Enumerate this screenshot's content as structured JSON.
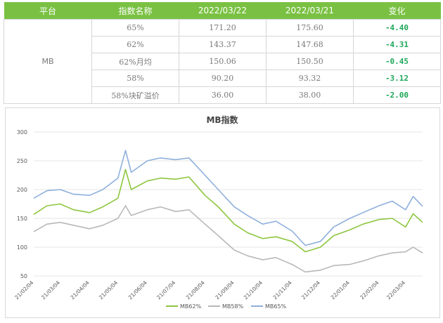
{
  "table": {
    "headers": [
      "平台",
      "指数名称",
      "2022/03/22",
      "2022/03/21",
      "变化"
    ],
    "platform": "MB",
    "rows": [
      {
        "name": "65%",
        "d1": "171.20",
        "d2": "175.60",
        "change": "-4.40"
      },
      {
        "name": "62%",
        "d1": "143.37",
        "d2": "147.68",
        "change": "-4.31"
      },
      {
        "name": "62%月均",
        "d1": "150.06",
        "d2": "150.50",
        "change": "-0.45"
      },
      {
        "name": "58%",
        "d1": "90.20",
        "d2": "93.32",
        "change": "-3.12"
      },
      {
        "name": "58%块矿溢价",
        "d1": "36.00",
        "d2": "38.00",
        "change": "-2.00"
      }
    ]
  },
  "chart_data": {
    "type": "line",
    "title": "MB指数",
    "ylim": [
      50,
      300
    ],
    "yticks": [
      50,
      100,
      150,
      200,
      250,
      300
    ],
    "x_tick_labels": [
      "21/02/04",
      "21/03/04",
      "21/04/04",
      "21/05/04",
      "21/06/04",
      "21/07/04",
      "21/08/04",
      "21/09/04",
      "21/10/04",
      "21/11/04",
      "21/12/04",
      "22/01/04",
      "22/02/04",
      "22/03/04"
    ],
    "legend_position": "bottom",
    "x": [
      "21/02/04",
      "21/02/18",
      "21/03/04",
      "21/03/18",
      "21/04/04",
      "21/04/18",
      "21/05/04",
      "21/05/12",
      "21/05/18",
      "21/06/04",
      "21/06/18",
      "21/07/04",
      "21/07/18",
      "21/08/04",
      "21/08/18",
      "21/09/04",
      "21/09/18",
      "21/10/04",
      "21/10/18",
      "21/11/04",
      "21/11/18",
      "21/12/04",
      "21/12/18",
      "22/01/04",
      "22/01/18",
      "22/02/04",
      "22/02/18",
      "22/03/04",
      "22/03/12",
      "22/03/22"
    ],
    "series": [
      {
        "name": "MB62%",
        "color": "#8dc63f",
        "values": [
          157,
          172,
          175,
          165,
          160,
          170,
          185,
          235,
          200,
          215,
          220,
          218,
          222,
          190,
          170,
          140,
          125,
          115,
          118,
          110,
          92,
          100,
          120,
          130,
          140,
          148,
          150,
          135,
          158,
          143
        ]
      },
      {
        "name": "MB58%",
        "color": "#b8b8b8",
        "values": [
          127,
          140,
          143,
          138,
          132,
          138,
          150,
          172,
          155,
          165,
          170,
          162,
          165,
          140,
          120,
          95,
          85,
          78,
          82,
          70,
          57,
          60,
          68,
          70,
          76,
          85,
          90,
          92,
          100,
          90
        ]
      },
      {
        "name": "MB65%",
        "color": "#8eafdc",
        "values": [
          185,
          198,
          200,
          192,
          190,
          200,
          220,
          268,
          230,
          250,
          255,
          252,
          255,
          225,
          200,
          170,
          155,
          140,
          145,
          128,
          103,
          110,
          135,
          150,
          160,
          172,
          180,
          165,
          188,
          171
        ]
      }
    ]
  }
}
